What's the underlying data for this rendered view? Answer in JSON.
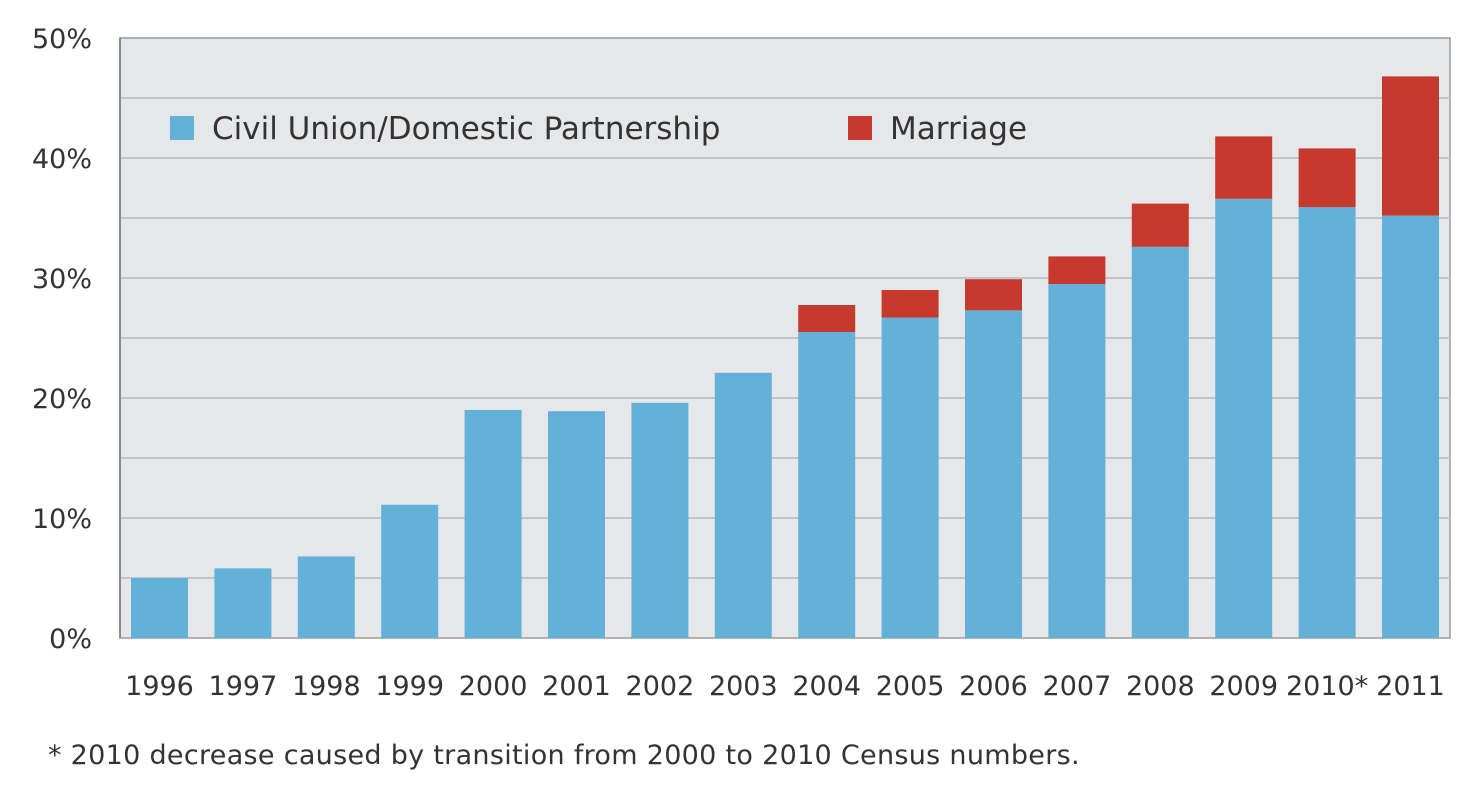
{
  "chart_data": {
    "type": "bar",
    "stacked": true,
    "categories": [
      "1996",
      "1997",
      "1998",
      "1999",
      "2000",
      "2001",
      "2002",
      "2003",
      "2004",
      "2005",
      "2006",
      "2007",
      "2008",
      "2009",
      "2010*",
      "2011"
    ],
    "series": [
      {
        "name": "Civil Union/Domestic Partnership",
        "color": "#63b1d9",
        "values": [
          5.0,
          5.8,
          6.8,
          11.1,
          19.0,
          18.9,
          19.6,
          22.1,
          25.5,
          26.7,
          27.3,
          29.5,
          32.6,
          36.6,
          35.9,
          35.2
        ]
      },
      {
        "name": "Marriage",
        "color": "#c63a2d",
        "values": [
          0,
          0,
          0,
          0,
          0,
          0,
          0,
          0,
          2.25,
          2.3,
          2.6,
          2.3,
          3.6,
          5.2,
          4.9,
          11.6
        ]
      }
    ],
    "ylim": [
      0,
      50
    ],
    "yticks": [
      "0%",
      "10%",
      "20%",
      "30%",
      "40%",
      "50%"
    ],
    "grid": true,
    "legend": "top-left",
    "plot_background": "#e6e7e9"
  },
  "footnote": "* 2010 decrease caused by transition from 2000 to 2010 Census numbers."
}
